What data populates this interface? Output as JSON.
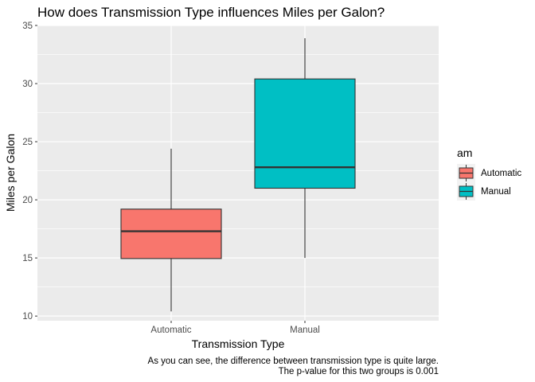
{
  "chart_data": {
    "type": "boxplot",
    "title": "How does Transmission Type influences Miles per Galon?",
    "xlabel": "Transmission Type",
    "ylabel": "Miles per Galon",
    "ylim": [
      9.6,
      35
    ],
    "yticks": [
      10,
      15,
      20,
      25,
      30,
      35
    ],
    "categories": [
      "Automatic",
      "Manual"
    ],
    "boxes": [
      {
        "category": "Automatic",
        "min": 10.4,
        "q1": 14.95,
        "median": 17.3,
        "q3": 19.2,
        "max": 24.4,
        "fill": "#F8766D"
      },
      {
        "category": "Manual",
        "min": 15.0,
        "q1": 21.0,
        "median": 22.8,
        "q3": 30.4,
        "max": 33.9,
        "fill": "#00BFC4"
      }
    ],
    "legend": {
      "title": "am",
      "position": "right",
      "items": [
        {
          "label": "Automatic",
          "color": "#F8766D"
        },
        {
          "label": "Manual",
          "color": "#00BFC4"
        }
      ]
    },
    "caption": [
      "As you can see, the difference between transmission type is quite large.",
      "The p-value for this two groups is 0.001"
    ],
    "grid": true,
    "panel_background": "#EBEBEB"
  }
}
